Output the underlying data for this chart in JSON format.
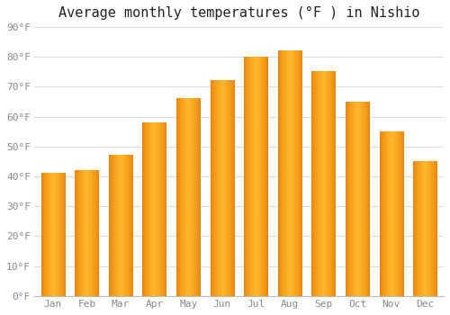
{
  "title": "Average monthly temperatures (°F ) in Nishio",
  "months": [
    "Jan",
    "Feb",
    "Mar",
    "Apr",
    "May",
    "Jun",
    "Jul",
    "Aug",
    "Sep",
    "Oct",
    "Nov",
    "Dec"
  ],
  "values": [
    41,
    42,
    47,
    58,
    66,
    72,
    80,
    82,
    75,
    65,
    55,
    45
  ],
  "ylim": [
    0,
    90
  ],
  "yticks": [
    0,
    10,
    20,
    30,
    40,
    50,
    60,
    70,
    80,
    90
  ],
  "ytick_labels": [
    "0°F",
    "10°F",
    "20°F",
    "30°F",
    "40°F",
    "50°F",
    "60°F",
    "70°F",
    "80°F",
    "90°F"
  ],
  "bar_color_left": "#E8820A",
  "bar_color_center": "#FFB732",
  "bar_color_right": "#E8820A",
  "background_color": "#ffffff",
  "plot_bg_color": "#ffffff",
  "grid_color": "#dddddd",
  "title_fontsize": 11,
  "tick_fontsize": 8,
  "tick_color": "#888888",
  "bar_width": 0.7
}
